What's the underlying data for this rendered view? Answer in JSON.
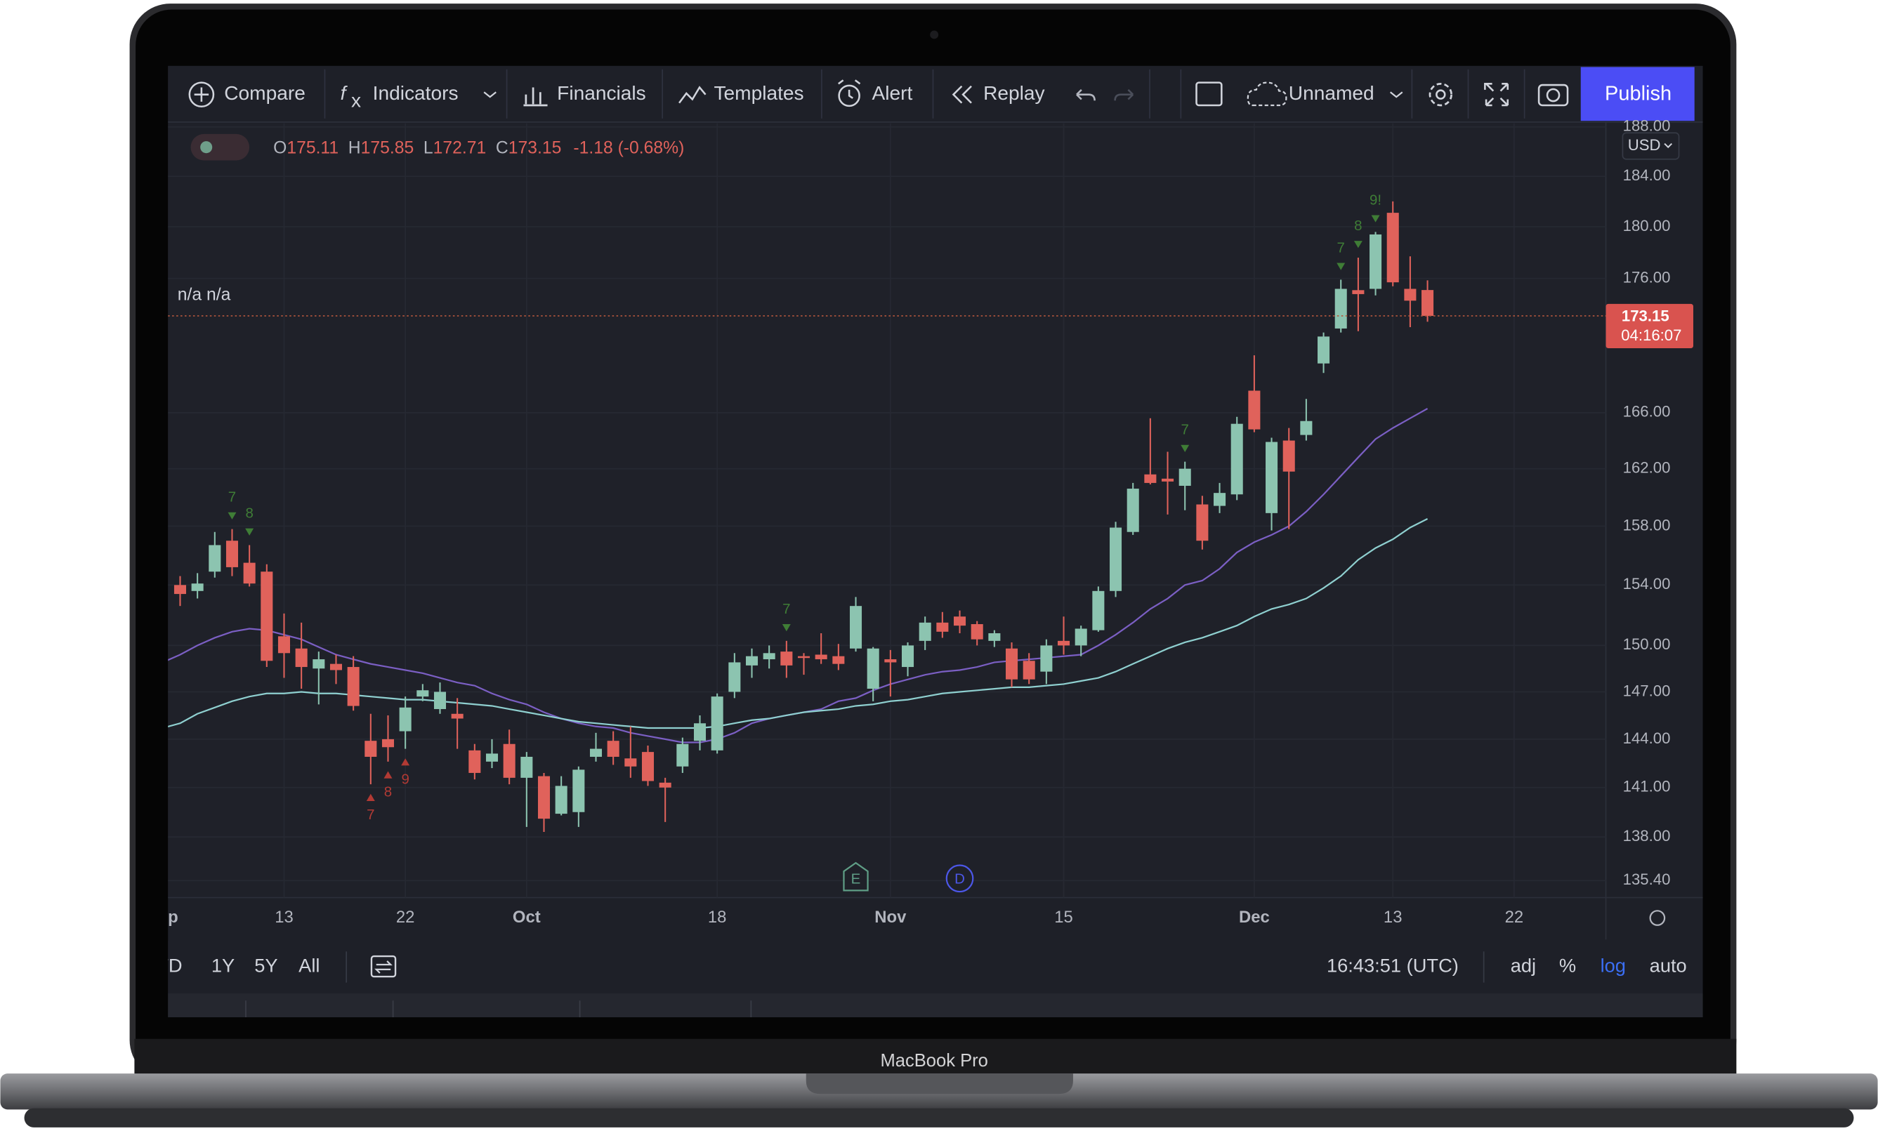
{
  "toolbar": {
    "compare": "Compare",
    "indicators": "Indicators",
    "financials": "Financials",
    "templates": "Templates",
    "alert": "Alert",
    "replay": "Replay",
    "layout_name": "Unnamed",
    "publish": "Publish"
  },
  "legend": {
    "open_label": "O",
    "open": "175.11",
    "high_label": "H",
    "high": "175.85",
    "low_label": "L",
    "low": "172.71",
    "close_label": "C",
    "close": "173.15",
    "change": "-1.18 (-0.68%)",
    "indicator_values": "n/a n/a"
  },
  "currency": "USD",
  "price_label": {
    "price": "173.15",
    "countdown": "04:16:07"
  },
  "events": [
    "E",
    "D"
  ],
  "bottom_bar": {
    "ranges": [
      "YTD",
      "1Y",
      "5Y",
      "All"
    ],
    "clock": "16:43:51 (UTC)",
    "adj": "adj",
    "percent": "%",
    "log": "log",
    "auto": "auto"
  },
  "device_label": "MacBook Pro",
  "chart_data": {
    "type": "candlestick",
    "log": true,
    "grid": true,
    "up_color": "#8cc4b0",
    "down_color": "#e0625b",
    "categories": [
      "Sep",
      null,
      null,
      null,
      null,
      null,
      null,
      "13",
      null,
      null,
      null,
      null,
      null,
      null,
      "22",
      null,
      null,
      null,
      null,
      null,
      null,
      "Oct",
      null,
      null,
      null,
      null,
      null,
      null,
      null,
      null,
      null,
      null,
      "18",
      null,
      null,
      null,
      null,
      null,
      null,
      null,
      null,
      null,
      "Nov",
      null,
      null,
      null,
      null,
      null,
      null,
      null,
      null,
      null,
      "15",
      null,
      null,
      null,
      null,
      null,
      null,
      null,
      null,
      null,
      null,
      "Dec",
      null,
      null,
      null,
      null,
      null,
      null,
      null,
      "13",
      null,
      null,
      null,
      null,
      null,
      null,
      "22",
      null
    ],
    "open": [
      null,
      154.0,
      153.6,
      154.9,
      157.0,
      155.5,
      154.9,
      150.6,
      149.8,
      148.5,
      148.8,
      148.6,
      143.9,
      144.0,
      144.5,
      146.7,
      145.9,
      145.6,
      143.3,
      142.6,
      143.7,
      141.6,
      141.7,
      139.4,
      139.5,
      142.9,
      143.9,
      142.8,
      143.2,
      141.3,
      142.3,
      143.9,
      143.3,
      147.0,
      148.7,
      149.1,
      149.6,
      149.3,
      149.4,
      149.3,
      149.8,
      147.2,
      149.1,
      148.6,
      150.3,
      151.5,
      151.9,
      151.4,
      150.3,
      149.8,
      149.0,
      148.3,
      150.3,
      150.0,
      151.0,
      153.6,
      157.6,
      161.6,
      161.3,
      160.8,
      159.5,
      159.4,
      160.2,
      167.6,
      158.9,
      164.0,
      164.4,
      169.6,
      172.2,
      175.1,
      175.2,
      181.1,
      175.2,
      175.11,
      null,
      null,
      null,
      null,
      null,
      null
    ],
    "high": [
      null,
      154.6,
      154.8,
      157.6,
      157.8,
      156.7,
      155.4,
      152.1,
      151.5,
      149.6,
      149.4,
      149.3,
      145.6,
      145.5,
      146.7,
      147.5,
      147.6,
      146.6,
      143.7,
      144.0,
      144.6,
      143.2,
      141.9,
      141.7,
      142.3,
      144.4,
      144.5,
      144.8,
      143.6,
      141.6,
      144.1,
      145.5,
      146.9,
      149.5,
      149.8,
      150.0,
      150.3,
      149.5,
      150.8,
      150.1,
      153.2,
      149.9,
      149.7,
      150.2,
      151.9,
      152.2,
      152.3,
      151.6,
      151.0,
      150.2,
      149.5,
      150.4,
      151.9,
      151.3,
      153.9,
      158.3,
      161.0,
      165.6,
      163.2,
      162.5,
      160.1,
      161.0,
      165.7,
      170.2,
      164.2,
      164.9,
      167.0,
      171.9,
      175.9,
      177.6,
      179.6,
      182.0,
      177.7,
      175.85,
      null,
      null,
      null,
      null,
      null,
      null
    ],
    "low": [
      null,
      152.6,
      153.1,
      154.5,
      154.6,
      153.9,
      148.6,
      147.9,
      147.2,
      146.2,
      147.5,
      145.8,
      141.2,
      142.6,
      143.4,
      146.4,
      145.6,
      143.4,
      141.5,
      142.2,
      141.2,
      138.6,
      138.3,
      139.3,
      138.6,
      142.6,
      142.4,
      141.6,
      141.1,
      138.9,
      141.9,
      143.3,
      143.1,
      146.6,
      147.9,
      148.5,
      147.9,
      148.1,
      148.8,
      148.4,
      149.6,
      146.4,
      146.7,
      148.0,
      149.7,
      150.5,
      150.8,
      150.0,
      149.9,
      147.3,
      147.5,
      147.5,
      149.4,
      149.3,
      150.9,
      153.2,
      157.4,
      160.9,
      158.8,
      159.1,
      156.4,
      158.9,
      159.8,
      164.6,
      157.7,
      157.8,
      164.0,
      168.9,
      171.9,
      172.0,
      174.7,
      175.4,
      172.3,
      172.71,
      null,
      null,
      null,
      null,
      null,
      null
    ],
    "close": [
      null,
      153.4,
      154.1,
      156.7,
      155.2,
      154.1,
      149.0,
      149.5,
      148.6,
      149.1,
      148.4,
      146.1,
      142.9,
      143.5,
      146.0,
      147.1,
      147.0,
      145.3,
      141.9,
      143.1,
      141.6,
      142.9,
      139.1,
      141.1,
      142.1,
      143.4,
      142.9,
      142.3,
      141.4,
      141.0,
      143.7,
      145.0,
      146.7,
      148.9,
      149.3,
      149.5,
      148.7,
      149.2,
      149.1,
      148.8,
      152.6,
      149.8,
      148.9,
      150.0,
      151.5,
      150.9,
      151.3,
      150.4,
      150.8,
      147.8,
      147.8,
      150.0,
      150.0,
      151.1,
      153.6,
      157.9,
      160.6,
      161.0,
      161.1,
      162.0,
      157.0,
      160.3,
      165.2,
      164.8,
      163.9,
      161.8,
      165.4,
      171.6,
      175.2,
      174.8,
      179.4,
      175.7,
      174.3,
      173.15,
      null,
      null,
      null,
      null,
      null,
      null
    ],
    "lines": [
      {
        "color": "#7b5fc4",
        "values": [
          148.9,
          149.4,
          150.0,
          150.5,
          150.9,
          151.1,
          151.0,
          150.7,
          150.4,
          149.9,
          149.4,
          149.1,
          148.8,
          148.6,
          148.4,
          148.2,
          147.9,
          147.6,
          147.4,
          146.9,
          146.5,
          146.2,
          145.7,
          145.3,
          145.0,
          144.8,
          144.7,
          144.4,
          144.2,
          144.0,
          143.8,
          143.8,
          144.0,
          144.4,
          145.0,
          145.3,
          145.5,
          145.7,
          145.9,
          146.4,
          146.6,
          147.1,
          147.5,
          147.8,
          148.1,
          148.3,
          148.4,
          148.6,
          148.9,
          149.0,
          149.1,
          149.2,
          149.3,
          149.4,
          150.0,
          150.7,
          151.5,
          152.4,
          153.1,
          154.0,
          154.3,
          155.1,
          156.2,
          156.9,
          157.4,
          158.0,
          159.0,
          160.2,
          161.5,
          162.8,
          164.1,
          164.9,
          165.6,
          166.3,
          null,
          null,
          null,
          null,
          null,
          null
        ]
      },
      {
        "color": "#8fd0d0",
        "values": [
          144.7,
          145.0,
          145.6,
          146.0,
          146.4,
          146.7,
          146.9,
          146.9,
          147.0,
          146.9,
          146.9,
          146.8,
          146.7,
          146.6,
          146.5,
          146.5,
          146.4,
          146.3,
          146.2,
          146.1,
          145.9,
          145.7,
          145.5,
          145.3,
          145.1,
          145.0,
          144.9,
          144.8,
          144.7,
          144.7,
          144.7,
          144.7,
          144.8,
          145.0,
          145.2,
          145.3,
          145.5,
          145.7,
          145.8,
          145.9,
          146.1,
          146.2,
          146.4,
          146.5,
          146.7,
          146.9,
          147.0,
          147.1,
          147.2,
          147.3,
          147.3,
          147.4,
          147.5,
          147.7,
          147.9,
          148.3,
          148.8,
          149.3,
          149.8,
          150.2,
          150.5,
          150.9,
          151.3,
          151.9,
          152.4,
          152.7,
          153.1,
          153.8,
          154.6,
          155.7,
          156.5,
          157.1,
          157.9,
          158.5,
          null,
          null,
          null,
          null,
          null,
          null
        ]
      }
    ],
    "annotations": [
      "7",
      "8",
      "7",
      "8",
      "9",
      "7",
      "7",
      "7",
      "8",
      "9!"
    ],
    "ylim": [
      134.4,
      188.3
    ],
    "yticks": [
      {
        "value": 188,
        "label": "188.00"
      },
      {
        "value": 184,
        "label": "184.00"
      },
      {
        "value": 180,
        "label": "180.00"
      },
      {
        "value": 176,
        "label": "176.00"
      },
      {
        "value": 166,
        "label": "166.00"
      },
      {
        "value": 162,
        "label": "162.00"
      },
      {
        "value": 158,
        "label": "158.00"
      },
      {
        "value": 154,
        "label": "154.00"
      },
      {
        "value": 150,
        "label": "150.00"
      },
      {
        "value": 147,
        "label": "147.00"
      },
      {
        "value": 144,
        "label": "144.00"
      },
      {
        "value": 141,
        "label": "141.00"
      },
      {
        "value": 138,
        "label": "138.00"
      },
      {
        "value": 135.4,
        "label": "135.40"
      }
    ]
  }
}
